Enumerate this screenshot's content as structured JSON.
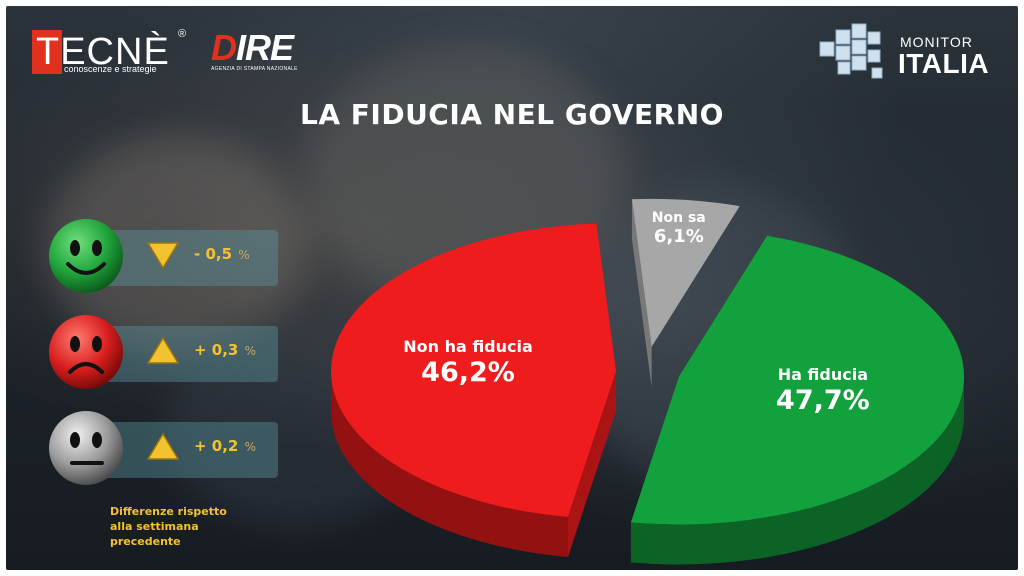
{
  "logos": {
    "tecne": {
      "word": "TECNÈ",
      "reg": "®",
      "tagline": "conoscenze e strategie"
    },
    "dire": {
      "word_red": "D",
      "word_rest": "IRE",
      "tagline": "AGENZIA DI STAMPA NAZIONALE"
    },
    "monitor": {
      "top": "MONITOR",
      "bottom": "ITALIA"
    }
  },
  "title": "LA FIDUCIA NEL GOVERNO",
  "changes": [
    {
      "face": "happy-face-icon",
      "color": "#1fa33a",
      "direction": "down",
      "value": "- 0,5",
      "unit": "%"
    },
    {
      "face": "sad-face-icon",
      "color": "#d81e1e",
      "direction": "up",
      "value": "+ 0,3",
      "unit": "%"
    },
    {
      "face": "neutral-face-icon",
      "color": "#9a9a9a",
      "direction": "up",
      "value": "+ 0,2",
      "unit": "%"
    }
  ],
  "note": "Differenze rispetto alla settimana precedente",
  "colors": {
    "ha_fiducia": "#12a13c",
    "non_ha_fiducia": "#ee1c1c",
    "non_sa": "#a7a7a7",
    "arrow": "#f2c230"
  },
  "chart_data": {
    "type": "pie",
    "title": "LA FIDUCIA NEL GOVERNO",
    "slices": [
      {
        "label": "Ha fiducia",
        "value": 47.7,
        "value_label": "47,7%",
        "color": "#12a13c"
      },
      {
        "label": "Non ha fiducia",
        "value": 46.2,
        "value_label": "46,2%",
        "color": "#ee1c1c"
      },
      {
        "label": "Non sa",
        "value": 6.1,
        "value_label": "6,1%",
        "color": "#a7a7a7"
      }
    ],
    "exploded": true,
    "style": "3d"
  }
}
